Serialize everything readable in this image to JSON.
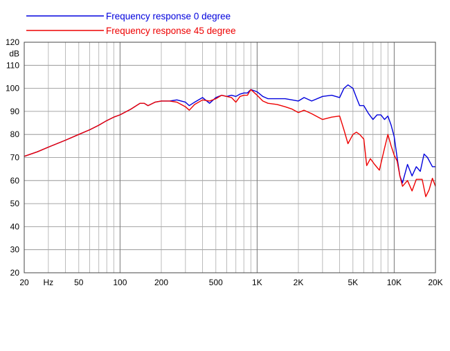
{
  "chart_data": {
    "type": "line",
    "xscale": "log",
    "xlim": [
      20,
      20000
    ],
    "ylim": [
      20,
      120
    ],
    "grid": true,
    "legend_position": "top-left",
    "ylabel": "dB",
    "xunit": "Hz",
    "x_ticks": [
      {
        "value": 20,
        "label": "20"
      },
      {
        "value": 50,
        "label": "50"
      },
      {
        "value": 100,
        "label": "100"
      },
      {
        "value": 200,
        "label": "200"
      },
      {
        "value": 500,
        "label": "500"
      },
      {
        "value": 1000,
        "label": "1K"
      },
      {
        "value": 2000,
        "label": "2K"
      },
      {
        "value": 5000,
        "label": "5K"
      },
      {
        "value": 10000,
        "label": "10K"
      },
      {
        "value": 20000,
        "label": "20K"
      }
    ],
    "y_ticks": [
      20,
      30,
      40,
      50,
      60,
      70,
      80,
      90,
      100,
      110,
      120
    ],
    "series": [
      {
        "name": "Frequency response 0 degree",
        "color": "#0000dd",
        "points": [
          [
            20,
            70.5
          ],
          [
            25,
            72.5
          ],
          [
            30,
            74.5
          ],
          [
            40,
            77.5
          ],
          [
            50,
            80
          ],
          [
            60,
            82
          ],
          [
            70,
            84
          ],
          [
            80,
            86
          ],
          [
            90,
            87.5
          ],
          [
            100,
            88.5
          ],
          [
            120,
            91
          ],
          [
            140,
            93.5
          ],
          [
            150,
            93.5
          ],
          [
            160,
            92.5
          ],
          [
            180,
            94
          ],
          [
            200,
            94.5
          ],
          [
            230,
            94.5
          ],
          [
            260,
            95
          ],
          [
            300,
            94
          ],
          [
            320,
            92.5
          ],
          [
            350,
            94
          ],
          [
            400,
            96
          ],
          [
            450,
            93.5
          ],
          [
            500,
            96
          ],
          [
            550,
            97
          ],
          [
            600,
            96.5
          ],
          [
            650,
            97
          ],
          [
            700,
            96.5
          ],
          [
            750,
            97.5
          ],
          [
            800,
            98
          ],
          [
            850,
            98
          ],
          [
            900,
            99.5
          ],
          [
            1000,
            98.5
          ],
          [
            1100,
            96.5
          ],
          [
            1200,
            95.5
          ],
          [
            1400,
            95.5
          ],
          [
            1600,
            95.5
          ],
          [
            1800,
            95
          ],
          [
            2000,
            94.5
          ],
          [
            2200,
            96
          ],
          [
            2500,
            94.5
          ],
          [
            3000,
            96.5
          ],
          [
            3500,
            97
          ],
          [
            4000,
            96
          ],
          [
            4300,
            100
          ],
          [
            4600,
            101.5
          ],
          [
            5000,
            100
          ],
          [
            5300,
            96
          ],
          [
            5600,
            92.5
          ],
          [
            6000,
            92.5
          ],
          [
            6500,
            89
          ],
          [
            7000,
            86.5
          ],
          [
            7500,
            88.5
          ],
          [
            8000,
            88.5
          ],
          [
            8500,
            86.5
          ],
          [
            9000,
            88
          ],
          [
            9500,
            84
          ],
          [
            10000,
            79
          ],
          [
            10500,
            70
          ],
          [
            11000,
            62
          ],
          [
            11500,
            59
          ],
          [
            12500,
            67
          ],
          [
            13500,
            62
          ],
          [
            14500,
            66
          ],
          [
            15500,
            64
          ],
          [
            16500,
            71.5
          ],
          [
            17500,
            70
          ],
          [
            19000,
            66
          ],
          [
            20000,
            66
          ]
        ]
      },
      {
        "name": "Frequency response 45 degree",
        "color": "#ee0000",
        "points": [
          [
            20,
            70.5
          ],
          [
            25,
            72.5
          ],
          [
            30,
            74.5
          ],
          [
            40,
            77.5
          ],
          [
            50,
            80
          ],
          [
            60,
            82
          ],
          [
            70,
            84
          ],
          [
            80,
            86
          ],
          [
            90,
            87.5
          ],
          [
            100,
            88.5
          ],
          [
            120,
            91
          ],
          [
            140,
            93.5
          ],
          [
            150,
            93.5
          ],
          [
            160,
            92.5
          ],
          [
            180,
            94
          ],
          [
            200,
            94.5
          ],
          [
            230,
            94.5
          ],
          [
            260,
            94
          ],
          [
            300,
            92
          ],
          [
            320,
            90.5
          ],
          [
            350,
            93
          ],
          [
            400,
            95
          ],
          [
            450,
            94.5
          ],
          [
            500,
            95.5
          ],
          [
            550,
            97
          ],
          [
            600,
            96.5
          ],
          [
            650,
            96
          ],
          [
            700,
            94
          ],
          [
            750,
            96.5
          ],
          [
            800,
            97
          ],
          [
            850,
            97
          ],
          [
            900,
            99.5
          ],
          [
            1000,
            97
          ],
          [
            1100,
            94.5
          ],
          [
            1200,
            93.5
          ],
          [
            1400,
            93
          ],
          [
            1600,
            92
          ],
          [
            1800,
            91
          ],
          [
            2000,
            89.5
          ],
          [
            2200,
            90.5
          ],
          [
            2500,
            89
          ],
          [
            3000,
            86.5
          ],
          [
            3500,
            87.5
          ],
          [
            4000,
            88
          ],
          [
            4300,
            82
          ],
          [
            4600,
            76
          ],
          [
            5000,
            80
          ],
          [
            5300,
            81
          ],
          [
            5600,
            80
          ],
          [
            6000,
            78
          ],
          [
            6300,
            66.5
          ],
          [
            6700,
            69.5
          ],
          [
            7200,
            67
          ],
          [
            7800,
            64.5
          ],
          [
            8500,
            74
          ],
          [
            9000,
            80
          ],
          [
            9500,
            75
          ],
          [
            10000,
            71
          ],
          [
            10500,
            68.5
          ],
          [
            11000,
            62
          ],
          [
            11500,
            57.5
          ],
          [
            12500,
            60
          ],
          [
            13500,
            55.5
          ],
          [
            14500,
            60.5
          ],
          [
            16000,
            60.5
          ],
          [
            17000,
            53
          ],
          [
            18000,
            56
          ],
          [
            19000,
            61
          ],
          [
            20000,
            57.5
          ]
        ]
      }
    ]
  }
}
